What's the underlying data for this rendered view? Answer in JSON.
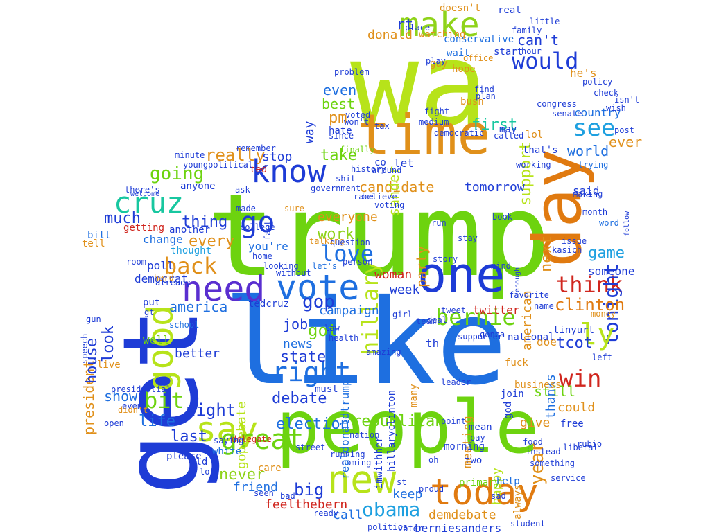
{
  "words": [
    {
      "text": "trump",
      "color": "#6dd30f"
    },
    {
      "text": "like",
      "color": "#1e6fe0"
    },
    {
      "text": "wa",
      "color": "#b7e31a"
    },
    {
      "text": "people",
      "color": "#6dd30f"
    },
    {
      "text": "get",
      "color": "#1e3cd6"
    },
    {
      "text": "time",
      "color": "#e0901a"
    },
    {
      "text": "day",
      "color": "#e07a10"
    },
    {
      "text": "one",
      "color": "#1e3cd6"
    },
    {
      "text": "vote",
      "color": "#1e6fe0"
    },
    {
      "text": "need",
      "color": "#5a2fd0"
    },
    {
      "text": "know",
      "color": "#1e3cd6"
    },
    {
      "text": "say",
      "color": "#b7e31a"
    },
    {
      "text": "new",
      "color": "#b7e31a"
    },
    {
      "text": "today",
      "color": "#e07a10"
    },
    {
      "text": "good",
      "color": "#b7e31a"
    },
    {
      "text": "go",
      "color": "#1e3cd6"
    },
    {
      "text": "cruz",
      "color": "#18c7a0"
    },
    {
      "text": "make",
      "color": "#8fd31a"
    },
    {
      "text": "would",
      "color": "#1e3cd6"
    },
    {
      "text": "back",
      "color": "#e0901a"
    },
    {
      "text": "see",
      "color": "#1ea0e0"
    },
    {
      "text": "bernie",
      "color": "#6dd30f"
    },
    {
      "text": "think",
      "color": "#d0261e"
    },
    {
      "text": "love",
      "color": "#1e6fe0"
    },
    {
      "text": "great",
      "color": "#6dd30f"
    },
    {
      "text": "right",
      "color": "#1e6fe0"
    },
    {
      "text": "win",
      "color": "#d0261e"
    },
    {
      "text": "obama",
      "color": "#1ea0e0"
    },
    {
      "text": "hillary",
      "color": "#b7e31a"
    },
    {
      "text": "tonight",
      "color": "#1e3cd6"
    },
    {
      "text": "going",
      "color": "#6dd30f"
    },
    {
      "text": "gop",
      "color": "#1e3cd6"
    },
    {
      "text": "year",
      "color": "#e0901a"
    },
    {
      "text": "ly",
      "color": "#b7e31a"
    },
    {
      "text": "clinton",
      "color": "#e07a10"
    },
    {
      "text": "president",
      "color": "#e0901a"
    },
    {
      "text": "state",
      "color": "#1e3cd6"
    },
    {
      "text": "debate",
      "color": "#1e3cd6"
    },
    {
      "text": "america",
      "color": "#1e6fe0"
    },
    {
      "text": "bit",
      "color": "#6dd30f"
    },
    {
      "text": "game",
      "color": "#1ea0e0"
    },
    {
      "text": "candidate",
      "color": "#e0901a"
    },
    {
      "text": "support",
      "color": "#b7e31a"
    },
    {
      "text": "really",
      "color": "#e0901a"
    },
    {
      "text": "work",
      "color": "#8fd31a"
    },
    {
      "text": "much",
      "color": "#1e3cd6"
    },
    {
      "text": "thing",
      "color": "#1e3cd6"
    },
    {
      "text": "first",
      "color": "#18c7a0"
    },
    {
      "text": "take",
      "color": "#6dd30f"
    },
    {
      "text": "best",
      "color": "#6dd30f"
    },
    {
      "text": "even",
      "color": "#1e6fe0"
    },
    {
      "text": "pm",
      "color": "#e0901a"
    },
    {
      "text": "sander",
      "color": "#b7e31a"
    },
    {
      "text": "woman",
      "color": "#d0261e"
    },
    {
      "text": "every",
      "color": "#e0901a"
    },
    {
      "text": "house",
      "color": "#1e3cd6"
    },
    {
      "text": "look",
      "color": "#1e3cd6"
    },
    {
      "text": "night",
      "color": "#1e3cd6"
    },
    {
      "text": "show",
      "color": "#1e6fe0"
    },
    {
      "text": "life",
      "color": "#1e6fe0"
    },
    {
      "text": "last",
      "color": "#1e3cd6"
    },
    {
      "text": "election",
      "color": "#1e6fe0"
    },
    {
      "text": "republican",
      "color": "#6dd30f"
    },
    {
      "text": "never",
      "color": "#8fd31a"
    },
    {
      "text": "friend",
      "color": "#1e6fe0"
    },
    {
      "text": "big",
      "color": "#1e3cd6"
    },
    {
      "text": "feelthebern",
      "color": "#d0261e"
    },
    {
      "text": "demdebate",
      "color": "#e0901a"
    },
    {
      "text": "berniesanders",
      "color": "#1e3cd6"
    },
    {
      "text": "happy",
      "color": "#b7e31a"
    },
    {
      "text": "meeting",
      "color": "#e0901a"
    },
    {
      "text": "party",
      "color": "#e0901a"
    },
    {
      "text": "job",
      "color": "#1e3cd6"
    },
    {
      "text": "got",
      "color": "#6dd30f"
    },
    {
      "text": "news",
      "color": "#1e6fe0"
    },
    {
      "text": "week",
      "color": "#1e3cd6"
    },
    {
      "text": "keep",
      "color": "#1e6fe0"
    },
    {
      "text": "call",
      "color": "#1e6fe0"
    },
    {
      "text": "gopdebate",
      "color": "#b7e31a"
    },
    {
      "text": "campaign",
      "color": "#1e6fe0"
    },
    {
      "text": "everyone",
      "color": "#e0901a"
    },
    {
      "text": "american",
      "color": "#e0901a"
    },
    {
      "text": "next",
      "color": "#e0901a"
    },
    {
      "text": "said",
      "color": "#1e3cd6"
    },
    {
      "text": "tomorrow",
      "color": "#1e3cd6"
    },
    {
      "text": "world",
      "color": "#1e6fe0"
    },
    {
      "text": "still",
      "color": "#6dd30f"
    },
    {
      "text": "tcot",
      "color": "#1e3cd6"
    },
    {
      "text": "could",
      "color": "#e0901a"
    },
    {
      "text": "give",
      "color": "#e0901a"
    },
    {
      "text": "doe",
      "color": "#e0901a"
    },
    {
      "text": "thanks",
      "color": "#1e6fe0"
    },
    {
      "text": "ever",
      "color": "#e0901a"
    },
    {
      "text": "country",
      "color": "#1e6fe0"
    },
    {
      "text": "someone",
      "color": "#1e3cd6"
    },
    {
      "text": "can't",
      "color": "#1e3cd6"
    },
    {
      "text": "donald",
      "color": "#e0901a"
    },
    {
      "text": "rt",
      "color": "#1e3cd6"
    },
    {
      "text": "he's",
      "color": "#e0901a"
    },
    {
      "text": "let",
      "color": "#1e3cd6"
    },
    {
      "text": "stop",
      "color": "#1e3cd6"
    },
    {
      "text": "better",
      "color": "#1e3cd6"
    },
    {
      "text": "democrat",
      "color": "#1e3cd6"
    },
    {
      "text": "you're",
      "color": "#1e6fe0"
    },
    {
      "text": "thought",
      "color": "#1ea0e0"
    },
    {
      "text": "change",
      "color": "#1e6fe0"
    },
    {
      "text": "anyone",
      "color": "#1e3cd6"
    },
    {
      "text": "ted",
      "color": "#d0261e"
    },
    {
      "text": "th",
      "color": "#1e3cd6"
    },
    {
      "text": "school",
      "color": "#1e6fe0"
    },
    {
      "text": "well",
      "color": "#6dd30f"
    },
    {
      "text": "twitter",
      "color": "#d0261e"
    },
    {
      "text": "must",
      "color": "#1e3cd6"
    },
    {
      "text": "way",
      "color": "#1e3cd6"
    },
    {
      "text": "hate",
      "color": "#1e3cd6"
    },
    {
      "text": "guy",
      "color": "#e0901a"
    },
    {
      "text": "hope",
      "color": "#e0901a"
    },
    {
      "text": "poll",
      "color": "#1e3cd6"
    },
    {
      "text": "fuck",
      "color": "#e0901a"
    },
    {
      "text": "tedcruz",
      "color": "#1e3cd6"
    },
    {
      "text": "please",
      "color": "#1e3cd6"
    },
    {
      "text": "white",
      "color": "#1e6fe0"
    },
    {
      "text": "old",
      "color": "#1e3cd6"
    },
    {
      "text": "care",
      "color": "#e0901a"
    },
    {
      "text": "primary",
      "color": "#6dd30f"
    },
    {
      "text": "two",
      "color": "#1e3cd6"
    },
    {
      "text": "morning",
      "color": "#1e3cd6"
    },
    {
      "text": "help",
      "color": "#1e6fe0"
    },
    {
      "text": "always",
      "color": "#e0901a"
    },
    {
      "text": "free",
      "color": "#1e3cd6"
    },
    {
      "text": "business",
      "color": "#e0901a"
    },
    {
      "text": "join",
      "color": "#1e3cd6"
    },
    {
      "text": "lol",
      "color": "#e0901a"
    },
    {
      "text": "conservative",
      "color": "#1e6fe0"
    },
    {
      "text": "family",
      "color": "#1e3cd6"
    },
    {
      "text": "watching",
      "color": "#e0901a"
    },
    {
      "text": "wait",
      "color": "#1e6fe0"
    },
    {
      "text": "start",
      "color": "#1e3cd6"
    },
    {
      "text": "hour",
      "color": "#1e3cd6"
    },
    {
      "text": "doesn't",
      "color": "#e0901a"
    },
    {
      "text": "real",
      "color": "#1e3cd6"
    },
    {
      "text": "little",
      "color": "#1e3cd6"
    },
    {
      "text": "place",
      "color": "#1e3cd6"
    },
    {
      "text": "bush",
      "color": "#e0901a"
    },
    {
      "text": "fight",
      "color": "#1e3cd6"
    },
    {
      "text": "may",
      "color": "#1e3cd6"
    },
    {
      "text": "senate",
      "color": "#1e3cd6"
    },
    {
      "text": "post",
      "color": "#1e3cd6"
    },
    {
      "text": "trying",
      "color": "#1e6fe0"
    },
    {
      "text": "month",
      "color": "#1e3cd6"
    },
    {
      "text": "word",
      "color": "#1e6fe0"
    },
    {
      "text": "follow",
      "color": "#1e3cd6"
    },
    {
      "text": "getting",
      "color": "#d0261e"
    },
    {
      "text": "bill",
      "color": "#1e6fe0"
    },
    {
      "text": "tell",
      "color": "#e0901a"
    },
    {
      "text": "another",
      "color": "#1e3cd6"
    },
    {
      "text": "put",
      "color": "#1e3cd6"
    },
    {
      "text": "gt",
      "color": "#1e3cd6"
    },
    {
      "text": "hard",
      "color": "#e0901a"
    },
    {
      "text": "room",
      "color": "#1e3cd6"
    },
    {
      "text": "home",
      "color": "#1e3cd6"
    },
    {
      "text": "college",
      "color": "#1e3cd6"
    },
    {
      "text": "made",
      "color": "#1e3cd6"
    },
    {
      "text": "sure",
      "color": "#e0901a"
    },
    {
      "text": "ask",
      "color": "#1e3cd6"
    },
    {
      "text": "political",
      "color": "#1e3cd6"
    },
    {
      "text": "government",
      "color": "#1e3cd6"
    },
    {
      "text": "race",
      "color": "#1e3cd6"
    },
    {
      "text": "remember",
      "color": "#1e3cd6"
    },
    {
      "text": "minute",
      "color": "#1e3cd6"
    },
    {
      "text": "young",
      "color": "#1e3cd6"
    },
    {
      "text": "finally",
      "color": "#6dd30f"
    },
    {
      "text": "since",
      "color": "#1e3cd6"
    },
    {
      "text": "tax",
      "color": "#1e3cd6"
    },
    {
      "text": "voted",
      "color": "#1e3cd6"
    },
    {
      "text": "believe",
      "color": "#1e3cd6"
    },
    {
      "text": "voting",
      "color": "#1e3cd6"
    },
    {
      "text": "talking",
      "color": "#e0901a"
    },
    {
      "text": "question",
      "color": "#1e3cd6"
    },
    {
      "text": "person",
      "color": "#1e3cd6"
    },
    {
      "text": "let's",
      "color": "#1e6fe0"
    },
    {
      "text": "run",
      "color": "#1e3cd6"
    },
    {
      "text": "stay",
      "color": "#1e3cd6"
    },
    {
      "text": "story",
      "color": "#1e3cd6"
    },
    {
      "text": "mind",
      "color": "#1e3cd6"
    },
    {
      "text": "book",
      "color": "#1e3cd6"
    },
    {
      "text": "name",
      "color": "#1e3cd6"
    },
    {
      "text": "favorite",
      "color": "#1e3cd6"
    },
    {
      "text": "tinyurl",
      "color": "#1e3cd6"
    },
    {
      "text": "kasich",
      "color": "#1e3cd6"
    },
    {
      "text": "rubio",
      "color": "#1e3cd6"
    },
    {
      "text": "money",
      "color": "#e0901a"
    },
    {
      "text": "left",
      "color": "#1e3cd6"
    },
    {
      "text": "gonna",
      "color": "#1e3cd6"
    },
    {
      "text": "national",
      "color": "#1e3cd6"
    },
    {
      "text": "supporter",
      "color": "#1e3cd6"
    },
    {
      "text": "liberal",
      "color": "#1e3cd6"
    },
    {
      "text": "coming",
      "color": "#1e3cd6"
    },
    {
      "text": "running",
      "color": "#1e3cd6"
    },
    {
      "text": "nation",
      "color": "#1e3cd6"
    },
    {
      "text": "street",
      "color": "#1e3cd6"
    },
    {
      "text": "delegate",
      "color": "#d0261e"
    },
    {
      "text": "saying",
      "color": "#1e3cd6"
    },
    {
      "text": "event",
      "color": "#1e3cd6"
    },
    {
      "text": "open",
      "color": "#1e3cd6"
    },
    {
      "text": "live",
      "color": "#e0901a"
    },
    {
      "text": "speech",
      "color": "#1e3cd6"
    },
    {
      "text": "gun",
      "color": "#1e3cd6"
    },
    {
      "text": "presidential",
      "color": "#1e3cd6"
    },
    {
      "text": "didn't",
      "color": "#e0901a"
    },
    {
      "text": "realdonaldtrump",
      "color": "#1e6fe0"
    },
    {
      "text": "hillaryclinton",
      "color": "#1e3cd6"
    },
    {
      "text": "imwithher",
      "color": "#1e3cd6"
    },
    {
      "text": "politics",
      "color": "#1e3cd6"
    },
    {
      "text": "voter",
      "color": "#1e3cd6"
    },
    {
      "text": "student",
      "color": "#1e3cd6"
    },
    {
      "text": "service",
      "color": "#1e3cd6"
    },
    {
      "text": "something",
      "color": "#1e3cd6"
    },
    {
      "text": "instead",
      "color": "#1e3cd6"
    },
    {
      "text": "food",
      "color": "#1e3cd6"
    },
    {
      "text": "sad",
      "color": "#1e3cd6"
    },
    {
      "text": "many",
      "color": "#e0901a"
    },
    {
      "text": "mean",
      "color": "#1e3cd6"
    },
    {
      "text": "pay",
      "color": "#1e3cd6"
    },
    {
      "text": "point",
      "color": "#1e3cd6"
    },
    {
      "text": "god",
      "color": "#1e3cd6"
    },
    {
      "text": "leader",
      "color": "#1e3cd6"
    },
    {
      "text": "girl",
      "color": "#1e3cd6"
    },
    {
      "text": "health",
      "color": "#1e3cd6"
    },
    {
      "text": "law",
      "color": "#1e3cd6"
    },
    {
      "text": "amazing",
      "color": "#1e3cd6"
    },
    {
      "text": "tweet",
      "color": "#1e3cd6"
    },
    {
      "text": "deal",
      "color": "#1e3cd6"
    },
    {
      "text": "bad",
      "color": "#1e3cd6"
    },
    {
      "text": "proud",
      "color": "#1e3cd6"
    },
    {
      "text": "oh",
      "color": "#1e3cd6"
    },
    {
      "text": "st",
      "color": "#1e3cd6"
    },
    {
      "text": "ready",
      "color": "#1e3cd6"
    },
    {
      "text": "lot",
      "color": "#1e3cd6"
    },
    {
      "text": "seen",
      "color": "#1e3cd6"
    },
    {
      "text": "fact",
      "color": "#1e3cd6"
    },
    {
      "text": "enough",
      "color": "#1e3cd6"
    },
    {
      "text": "team",
      "color": "#1e3cd6"
    },
    {
      "text": "office",
      "color": "#e0901a"
    },
    {
      "text": "plan",
      "color": "#1e3cd6"
    },
    {
      "text": "find",
      "color": "#1e3cd6"
    },
    {
      "text": "medium",
      "color": "#1e3cd6"
    },
    {
      "text": "democratic",
      "color": "#1e3cd6"
    },
    {
      "text": "called",
      "color": "#1e3cd6"
    },
    {
      "text": "check",
      "color": "#1e3cd6"
    },
    {
      "text": "congress",
      "color": "#1e3cd6"
    },
    {
      "text": "policy",
      "color": "#1e3cd6"
    },
    {
      "text": "wish",
      "color": "#1e3cd6"
    },
    {
      "text": "isn't",
      "color": "#1e3cd6"
    },
    {
      "text": "making",
      "color": "#1e3cd6"
    },
    {
      "text": "issue",
      "color": "#1e3cd6"
    },
    {
      "text": "working",
      "color": "#1e3cd6"
    },
    {
      "text": "that's",
      "color": "#1e3cd6"
    },
    {
      "text": "problem",
      "color": "#1e3cd6"
    },
    {
      "text": "play",
      "color": "#1e3cd6"
    },
    {
      "text": "won't",
      "color": "#1e3cd6"
    },
    {
      "text": "history",
      "color": "#1e3cd6"
    },
    {
      "text": "around",
      "color": "#1e3cd6"
    },
    {
      "text": "co",
      "color": "#1e3cd6"
    },
    {
      "text": "shit",
      "color": "#1e3cd6"
    },
    {
      "text": "there's",
      "color": "#1e3cd6"
    },
    {
      "text": "welcome",
      "color": "#1e3cd6"
    },
    {
      "text": "already",
      "color": "#1e3cd6"
    },
    {
      "text": "looking",
      "color": "#1e3cd6"
    },
    {
      "text": "without",
      "color": "#1e3cd6"
    }
  ]
}
